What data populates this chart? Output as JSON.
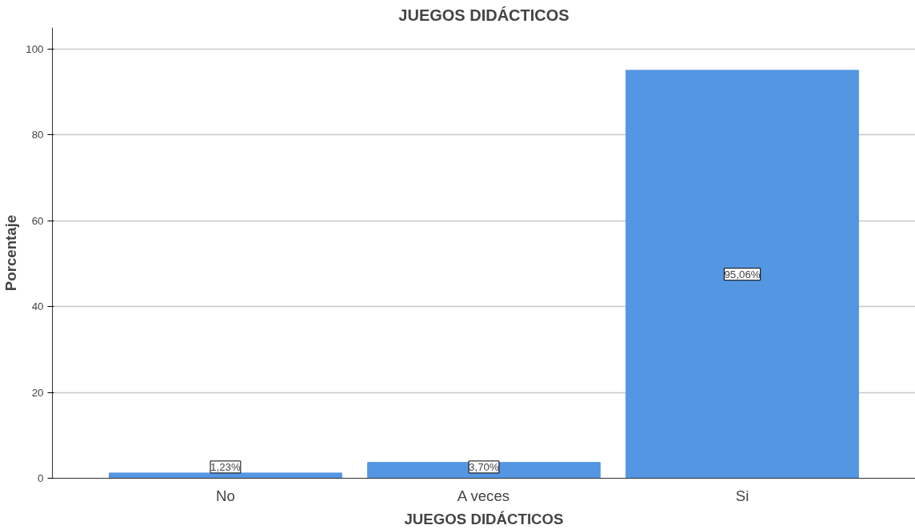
{
  "chart_data": {
    "type": "bar",
    "title": "JUEGOS DIDÁCTICOS",
    "xlabel": "JUEGOS DIDÁCTICOS",
    "ylabel": "Porcentaje",
    "categories": [
      "No",
      "A veces",
      "Si"
    ],
    "values": [
      1.23,
      3.7,
      95.06
    ],
    "value_labels": [
      "1,23%",
      "3,70%",
      "95,06%"
    ],
    "color": "#5596e3",
    "ylim": [
      0,
      105
    ],
    "yticks": [
      0,
      20,
      40,
      60,
      80,
      100
    ],
    "grid": "y"
  }
}
